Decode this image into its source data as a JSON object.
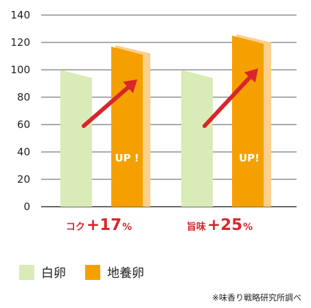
{
  "chart_data": {
    "type": "bar",
    "ylim": [
      0,
      140
    ],
    "yticks": [
      0,
      20,
      40,
      60,
      80,
      100,
      120,
      140
    ],
    "grid": true,
    "series": [
      {
        "name": "白卵",
        "color": "#d9ebb6",
        "values": [
          100,
          100
        ]
      },
      {
        "name": "地養卵",
        "color": "#f5a000",
        "values": [
          117,
          125
        ]
      }
    ],
    "categories": [
      {
        "label_main": "コク",
        "label_value": "+17",
        "label_unit": "%",
        "up_text": "UP !"
      },
      {
        "label_main": "旨味",
        "label_value": "+25",
        "label_unit": "%",
        "up_text": "UP!"
      }
    ],
    "legend_position": "bottom-left",
    "accent_color": "#d8262c"
  },
  "legend": [
    {
      "label": "白卵",
      "color": "#d9ebb6"
    },
    {
      "label": "地養卵",
      "color": "#f5a000"
    }
  ],
  "source_note": "※味香り戦略研究所調べ"
}
